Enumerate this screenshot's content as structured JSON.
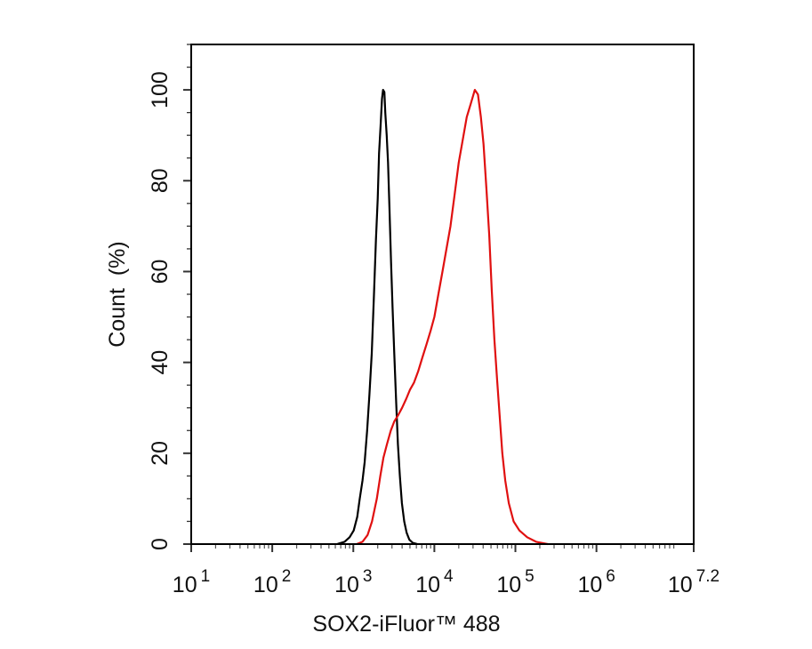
{
  "chart_data": {
    "type": "line",
    "title": "",
    "xlabel": "SOX2-iFluor™ 488",
    "ylabel": "Count  (%)",
    "x_scale": "log",
    "xlim": [
      10,
      15848932
    ],
    "ylim": [
      0,
      110
    ],
    "x_ticks": [
      {
        "base": "10",
        "exp": "1",
        "value": 10
      },
      {
        "base": "10",
        "exp": "2",
        "value": 100
      },
      {
        "base": "10",
        "exp": "3",
        "value": 1000
      },
      {
        "base": "10",
        "exp": "4",
        "value": 10000
      },
      {
        "base": "10",
        "exp": "5",
        "value": 100000
      },
      {
        "base": "10",
        "exp": "6",
        "value": 1000000
      },
      {
        "base": "10",
        "exp": "7.2",
        "value": 15848932
      }
    ],
    "y_ticks": [
      "0",
      "20",
      "40",
      "60",
      "80",
      "100"
    ],
    "grid": false,
    "series": [
      {
        "color": "#000000",
        "points": [
          [
            630,
            0
          ],
          [
            780,
            0.5
          ],
          [
            900,
            1.5
          ],
          [
            1010,
            3
          ],
          [
            1120,
            6
          ],
          [
            1200,
            10
          ],
          [
            1300,
            14
          ],
          [
            1380,
            18
          ],
          [
            1480,
            25
          ],
          [
            1580,
            33
          ],
          [
            1690,
            42
          ],
          [
            1800,
            55
          ],
          [
            1900,
            67
          ],
          [
            2000,
            76
          ],
          [
            2080,
            86
          ],
          [
            2170,
            92
          ],
          [
            2260,
            98
          ],
          [
            2330,
            100
          ],
          [
            2420,
            99.5
          ],
          [
            2480,
            95
          ],
          [
            2580,
            90
          ],
          [
            2680,
            84
          ],
          [
            2790,
            74
          ],
          [
            2920,
            62
          ],
          [
            3050,
            52
          ],
          [
            3200,
            42
          ],
          [
            3380,
            31
          ],
          [
            3550,
            22
          ],
          [
            3750,
            15
          ],
          [
            3980,
            9
          ],
          [
            4250,
            5
          ],
          [
            4550,
            2.5
          ],
          [
            4900,
            1
          ],
          [
            5400,
            0.3
          ],
          [
            6200,
            0
          ]
        ]
      },
      {
        "color": "#e01010",
        "points": [
          [
            1100,
            0
          ],
          [
            1300,
            0.5
          ],
          [
            1500,
            2
          ],
          [
            1700,
            5
          ],
          [
            1950,
            10
          ],
          [
            2150,
            15
          ],
          [
            2350,
            19
          ],
          [
            2600,
            22
          ],
          [
            2900,
            25
          ],
          [
            3200,
            27
          ],
          [
            3600,
            28.5
          ],
          [
            4000,
            30
          ],
          [
            4500,
            32
          ],
          [
            5000,
            34
          ],
          [
            5600,
            35.5
          ],
          [
            6300,
            38
          ],
          [
            7100,
            41
          ],
          [
            8000,
            44
          ],
          [
            9000,
            47
          ],
          [
            10000,
            50
          ],
          [
            11200,
            55
          ],
          [
            12600,
            60
          ],
          [
            14100,
            65
          ],
          [
            15800,
            70
          ],
          [
            17800,
            77
          ],
          [
            20000,
            84
          ],
          [
            22400,
            89
          ],
          [
            25100,
            94
          ],
          [
            28200,
            97
          ],
          [
            31600,
            100
          ],
          [
            34500,
            99
          ],
          [
            37500,
            94
          ],
          [
            40500,
            88
          ],
          [
            44000,
            78
          ],
          [
            47500,
            68
          ],
          [
            51000,
            56
          ],
          [
            55000,
            45
          ],
          [
            59500,
            36
          ],
          [
            64000,
            28
          ],
          [
            69000,
            20
          ],
          [
            75000,
            14
          ],
          [
            83000,
            9
          ],
          [
            95000,
            5
          ],
          [
            112000,
            3
          ],
          [
            140000,
            1.5
          ],
          [
            180000,
            0.5
          ],
          [
            250000,
            0
          ]
        ]
      }
    ]
  }
}
